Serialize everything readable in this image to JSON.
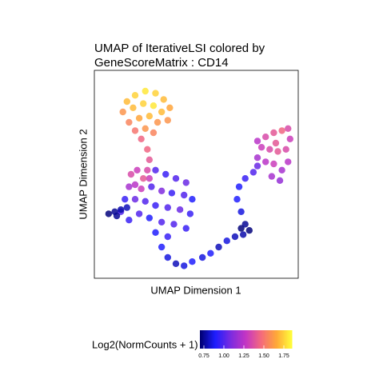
{
  "chart_data": {
    "type": "scatter",
    "title": [
      "UMAP of IterativeLSI colored by",
      "GeneScoreMatrix : CD14"
    ],
    "x_label": "UMAP Dimension 1",
    "y_label": "UMAP Dimension 2",
    "legend_title": "Log2(NormCounts + 1)",
    "xlim": [
      0,
      100
    ],
    "ylim": [
      0,
      100
    ],
    "clim": [
      0.7,
      1.85
    ],
    "cticks": [
      0.75,
      {
        "value": 1,
        "label": "1.00"
      },
      1.25,
      {
        "value": 1.5,
        "label": "1.50"
      },
      1.75
    ],
    "colors": [
      "#00006e",
      "#1d1dff",
      "#7a2be0",
      "#c436c4",
      "#f46a7c",
      "#ffa838",
      "#ffff3a"
    ],
    "points": [
      [
        16,
        85,
        1.7
      ],
      [
        20,
        88,
        1.75
      ],
      [
        25,
        90,
        1.8
      ],
      [
        30,
        89,
        1.75
      ],
      [
        34,
        86,
        1.7
      ],
      [
        37,
        82,
        1.65
      ],
      [
        14,
        80,
        1.6
      ],
      [
        19,
        82,
        1.7
      ],
      [
        24,
        84,
        1.75
      ],
      [
        29,
        83,
        1.8
      ],
      [
        33,
        80,
        1.7
      ],
      [
        36,
        76,
        1.6
      ],
      [
        17,
        75,
        1.55
      ],
      [
        22,
        77,
        1.65
      ],
      [
        27,
        78,
        1.7
      ],
      [
        31,
        75,
        1.6
      ],
      [
        20,
        71,
        1.5
      ],
      [
        25,
        72,
        1.6
      ],
      [
        29,
        70,
        1.55
      ],
      [
        23,
        67,
        1.45
      ],
      [
        26,
        62,
        1.45
      ],
      [
        27,
        57,
        1.4
      ],
      [
        26,
        52,
        1.35
      ],
      [
        27,
        48,
        1.3
      ],
      [
        18,
        50,
        1.35
      ],
      [
        21,
        52,
        1.3
      ],
      [
        24,
        48,
        1.4
      ],
      [
        20,
        45,
        1.25
      ],
      [
        23,
        43,
        1.3
      ],
      [
        17,
        44,
        1.2
      ],
      [
        30,
        52,
        1.0
      ],
      [
        35,
        50,
        0.95
      ],
      [
        40,
        48,
        1.0
      ],
      [
        45,
        46,
        1.05
      ],
      [
        28,
        44,
        1.0
      ],
      [
        33,
        42,
        1.1
      ],
      [
        38,
        41,
        0.95
      ],
      [
        44,
        40,
        1.0
      ],
      [
        48,
        38,
        0.9
      ],
      [
        15,
        38,
        0.95
      ],
      [
        20,
        38,
        1.05
      ],
      [
        25,
        37,
        1.0
      ],
      [
        30,
        35,
        0.95
      ],
      [
        36,
        34,
        1.0
      ],
      [
        42,
        33,
        1.05
      ],
      [
        47,
        31,
        0.95
      ],
      [
        22,
        31,
        1.0
      ],
      [
        27,
        29,
        0.9
      ],
      [
        33,
        27,
        1.0
      ],
      [
        39,
        26,
        1.0
      ],
      [
        45,
        24,
        0.95
      ],
      [
        30,
        22,
        0.9
      ],
      [
        36,
        20,
        0.95
      ],
      [
        13,
        32,
        1.0
      ],
      [
        17,
        28,
        0.95
      ],
      [
        7,
        31,
        0.72
      ],
      [
        10,
        32,
        0.75
      ],
      [
        13,
        33,
        0.78
      ],
      [
        16,
        34,
        0.8
      ],
      [
        11,
        30,
        0.75
      ],
      [
        33,
        15,
        0.9
      ],
      [
        36,
        10,
        0.85
      ],
      [
        40,
        7,
        0.8
      ],
      [
        44,
        6,
        0.85
      ],
      [
        48,
        8,
        0.9
      ],
      [
        53,
        10,
        0.85
      ],
      [
        57,
        12,
        0.9
      ],
      [
        61,
        15,
        0.8
      ],
      [
        65,
        18,
        0.85
      ],
      [
        69,
        20,
        0.8
      ],
      [
        72,
        24,
        0.72
      ],
      [
        74,
        26,
        0.75
      ],
      [
        76,
        23,
        0.72
      ],
      [
        73,
        21,
        0.78
      ],
      [
        72,
        32,
        0.85
      ],
      [
        70,
        38,
        0.9
      ],
      [
        71,
        44,
        0.9
      ],
      [
        74,
        48,
        0.95
      ],
      [
        78,
        51,
        1.0
      ],
      [
        80,
        54,
        1.05
      ],
      [
        80,
        58,
        1.2
      ],
      [
        84,
        56,
        1.25
      ],
      [
        88,
        55,
        1.3
      ],
      [
        92,
        52,
        1.2
      ],
      [
        95,
        56,
        1.25
      ],
      [
        82,
        63,
        1.3
      ],
      [
        86,
        62,
        1.35
      ],
      [
        90,
        61,
        1.4
      ],
      [
        94,
        62,
        1.35
      ],
      [
        96,
        67,
        1.3
      ],
      [
        84,
        68,
        1.35
      ],
      [
        88,
        70,
        1.4
      ],
      [
        92,
        71,
        1.45
      ],
      [
        95,
        72,
        1.35
      ],
      [
        89,
        65,
        1.4
      ],
      [
        80,
        66,
        1.25
      ],
      [
        91,
        47,
        1.15
      ],
      [
        87,
        49,
        1.2
      ]
    ]
  }
}
